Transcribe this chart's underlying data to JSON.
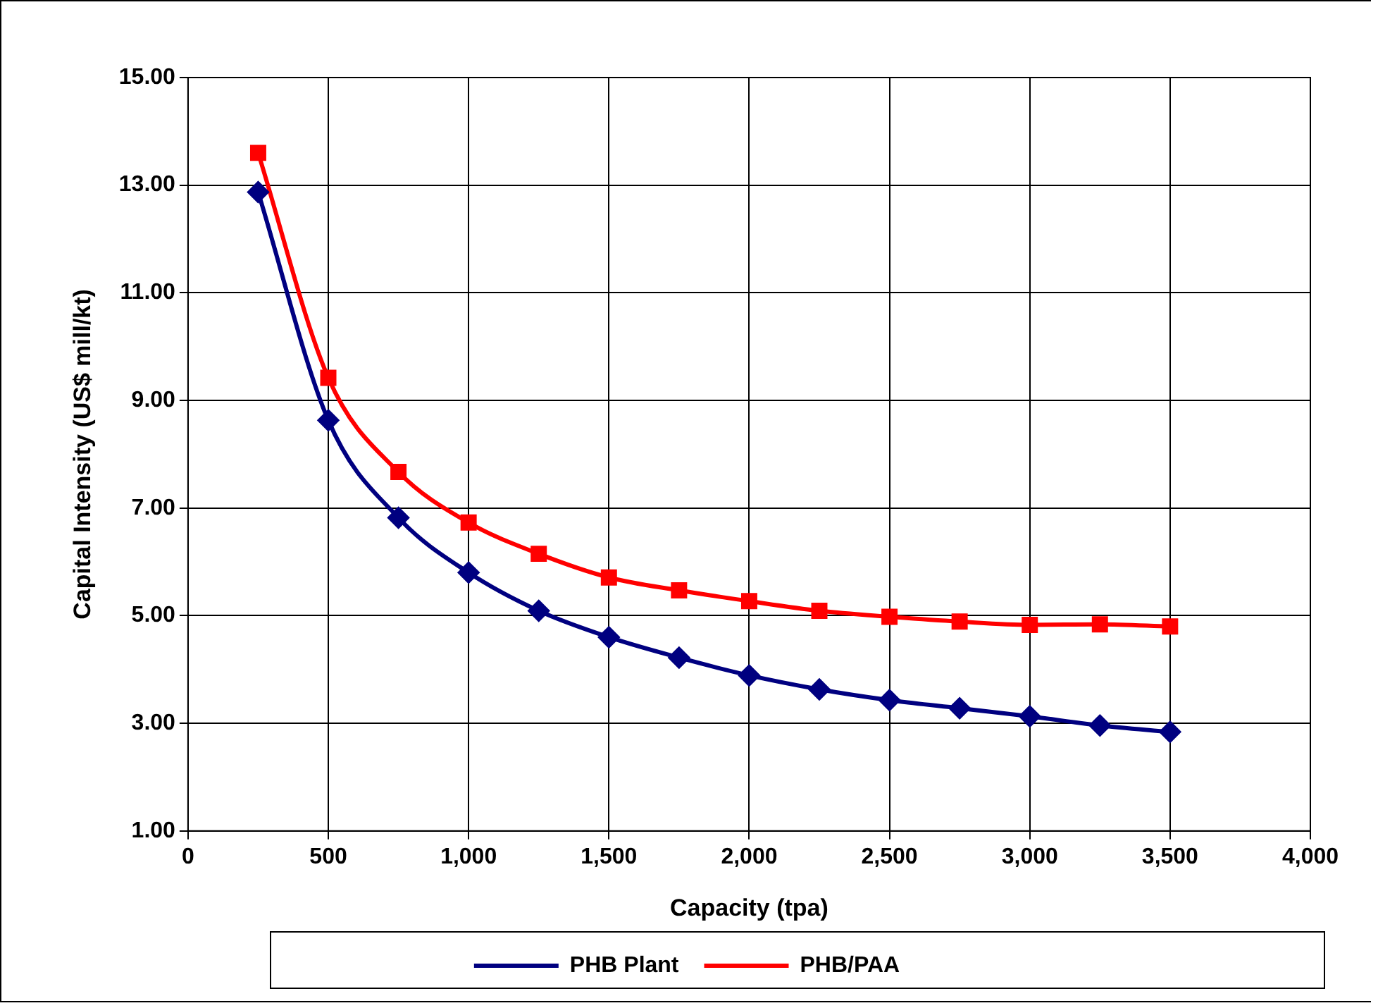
{
  "chart_data": {
    "type": "line",
    "xlabel": "Capacity (tpa)",
    "ylabel": "Capital Intensity (US$ mill/kt)",
    "x": [
      250,
      500,
      750,
      1000,
      1250,
      1500,
      1750,
      2000,
      2250,
      2500,
      2750,
      3000,
      3250,
      3500
    ],
    "series": [
      {
        "name": "PHB Plant",
        "color": "#000080",
        "marker": "diamond",
        "values": [
          12.87,
          8.63,
          6.82,
          5.8,
          5.09,
          4.6,
          4.22,
          3.89,
          3.63,
          3.43,
          3.28,
          3.13,
          2.96,
          2.84
        ]
      },
      {
        "name": "PHB/PAA",
        "color": "#ff0000",
        "marker": "square",
        "values": [
          13.6,
          9.42,
          7.67,
          6.73,
          6.15,
          5.71,
          5.47,
          5.27,
          5.09,
          4.98,
          4.89,
          4.83,
          4.84,
          4.8
        ]
      }
    ],
    "xlim": [
      0,
      4000
    ],
    "xticks": [
      {
        "value": 0,
        "label": "0"
      },
      {
        "value": 500,
        "label": "500"
      },
      {
        "value": 1000,
        "label": "1,000"
      },
      {
        "value": 1500,
        "label": "1,500"
      },
      {
        "value": 2000,
        "label": "2,000"
      },
      {
        "value": 2500,
        "label": "2,500"
      },
      {
        "value": 3000,
        "label": "3,000"
      },
      {
        "value": 3500,
        "label": "3,500"
      },
      {
        "value": 4000,
        "label": "4,000"
      }
    ],
    "ylim": [
      1,
      15
    ],
    "yticks": [
      {
        "value": 1,
        "label": "1.00"
      },
      {
        "value": 3,
        "label": "3.00"
      },
      {
        "value": 5,
        "label": "5.00"
      },
      {
        "value": 7,
        "label": "7.00"
      },
      {
        "value": 9,
        "label": "9.00"
      },
      {
        "value": 11,
        "label": "11.00"
      },
      {
        "value": 13,
        "label": "13.00"
      },
      {
        "value": 15,
        "label": "15.00"
      }
    ],
    "grid": true,
    "legend": "bottom",
    "line_style": "solid"
  }
}
